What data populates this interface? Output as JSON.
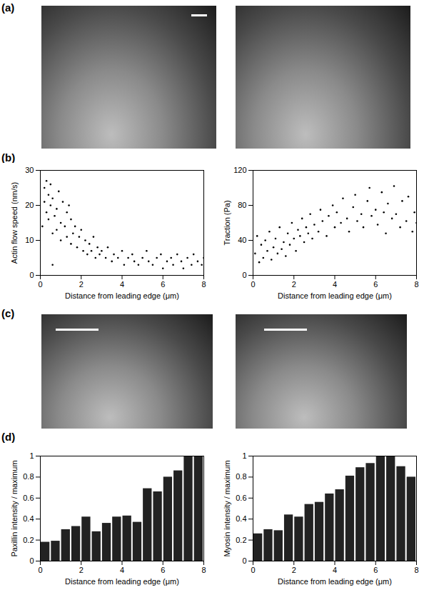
{
  "panel_labels": [
    "(a)",
    "(b)",
    "(c)",
    "(d)"
  ],
  "chart_data": [
    {
      "type": "scatter",
      "x_label": "Distance from leading edge (μm)",
      "y_label": "Actin flow speed (nm/s)",
      "x": [
        0.1,
        0.2,
        0.2,
        0.3,
        0.3,
        0.4,
        0.4,
        0.5,
        0.5,
        0.6,
        0.6,
        0.6,
        0.7,
        0.8,
        0.8,
        0.9,
        1.0,
        1.0,
        1.1,
        1.2,
        1.3,
        1.3,
        1.4,
        1.5,
        1.5,
        1.6,
        1.7,
        1.8,
        1.9,
        2.0,
        2.1,
        2.2,
        2.3,
        2.4,
        2.5,
        2.6,
        2.7,
        2.8,
        2.9,
        3.0,
        3.2,
        3.3,
        3.5,
        3.6,
        3.8,
        4.0,
        4.1,
        4.3,
        4.5,
        4.6,
        4.8,
        5.0,
        5.2,
        5.3,
        5.5,
        5.7,
        5.9,
        6.0,
        6.2,
        6.4,
        6.5,
        6.7,
        6.9,
        7.0,
        7.2,
        7.4,
        7.5,
        7.7,
        7.9,
        8.0
      ],
      "values": [
        14,
        21,
        25,
        18,
        27,
        23,
        16,
        26,
        20,
        12,
        22,
        3,
        17,
        19,
        13,
        24,
        15,
        10,
        21,
        14,
        18,
        11,
        20,
        9,
        16,
        12,
        14,
        8,
        11,
        13,
        7,
        10,
        6,
        9,
        7,
        11,
        5,
        8,
        6,
        7,
        5,
        8,
        4,
        6,
        5,
        7,
        3,
        5,
        6,
        4,
        3,
        5,
        7,
        4,
        3,
        5,
        6,
        2,
        4,
        5,
        3,
        6,
        4,
        2,
        5,
        3,
        6,
        4,
        3,
        5
      ],
      "color": "#000000",
      "xlim": [
        0,
        8
      ],
      "xticks": [
        0,
        2,
        4,
        6,
        8
      ],
      "ylim": [
        0,
        30
      ],
      "yticks": [
        0,
        10,
        20,
        30
      ]
    },
    {
      "type": "scatter",
      "x_label": "Distance from leading edge (μm)",
      "y_label": "Traction (Pa)",
      "x": [
        0.1,
        0.2,
        0.3,
        0.4,
        0.5,
        0.6,
        0.7,
        0.8,
        0.9,
        1.0,
        1.1,
        1.2,
        1.3,
        1.4,
        1.5,
        1.6,
        1.7,
        1.8,
        1.9,
        2.0,
        2.1,
        2.2,
        2.3,
        2.4,
        2.5,
        2.6,
        2.7,
        2.8,
        2.9,
        3.0,
        3.2,
        3.3,
        3.4,
        3.6,
        3.7,
        3.9,
        4.0,
        4.1,
        4.3,
        4.4,
        4.6,
        4.7,
        4.9,
        5.0,
        5.1,
        5.3,
        5.4,
        5.6,
        5.7,
        5.8,
        6.0,
        6.1,
        6.3,
        6.4,
        6.5,
        6.6,
        6.8,
        6.9,
        7.0,
        7.2,
        7.3,
        7.5,
        7.6,
        7.8,
        7.9,
        8.0
      ],
      "values": [
        25,
        45,
        15,
        35,
        20,
        40,
        28,
        50,
        18,
        32,
        42,
        25,
        55,
        30,
        38,
        22,
        48,
        35,
        60,
        42,
        28,
        52,
        45,
        65,
        38,
        55,
        48,
        70,
        42,
        58,
        50,
        75,
        62,
        45,
        68,
        80,
        55,
        72,
        60,
        88,
        65,
        50,
        78,
        92,
        62,
        70,
        55,
        85,
        100,
        68,
        75,
        58,
        95,
        72,
        48,
        82,
        65,
        102,
        70,
        55,
        85,
        62,
        90,
        50,
        72,
        60
      ],
      "color": "#000000",
      "xlim": [
        0,
        8
      ],
      "xticks": [
        0,
        2,
        4,
        6,
        8
      ],
      "ylim": [
        0,
        120
      ],
      "yticks": [
        0,
        40,
        80,
        120
      ]
    },
    {
      "type": "histogram",
      "x_label": "Distance from leading edge (μm)",
      "y_label": "Paxillin intensity / maximum",
      "bins": [
        0,
        0.5,
        1,
        1.5,
        2,
        2.5,
        3,
        3.5,
        4,
        4.5,
        5,
        5.5,
        6,
        6.5,
        7,
        7.5,
        8
      ],
      "values": [
        0.18,
        0.19,
        0.3,
        0.33,
        0.42,
        0.28,
        0.36,
        0.42,
        0.43,
        0.37,
        0.69,
        0.66,
        0.8,
        0.86,
        1.0,
        1.0
      ],
      "color": "#222222",
      "xlim": [
        0,
        8
      ],
      "xticks": [
        0,
        2,
        4,
        6,
        8
      ],
      "ylim": [
        0,
        1
      ],
      "yticks": [
        0,
        0.2,
        0.4,
        0.6,
        0.8,
        1
      ]
    },
    {
      "type": "histogram",
      "x_label": "Distance from leading edge (μm)",
      "y_label": "Myosin intensity / maximum",
      "bins": [
        0,
        0.5,
        1,
        1.5,
        2,
        2.5,
        3,
        3.5,
        4,
        4.5,
        5,
        5.5,
        6,
        6.5,
        7,
        7.5,
        8
      ],
      "values": [
        0.26,
        0.3,
        0.29,
        0.44,
        0.42,
        0.54,
        0.56,
        0.64,
        0.68,
        0.81,
        0.89,
        0.93,
        1.0,
        1.0,
        0.9,
        0.8
      ],
      "color": "#222222",
      "xlim": [
        0,
        8
      ],
      "xticks": [
        0,
        2,
        4,
        6,
        8
      ],
      "ylim": [
        0,
        1
      ],
      "yticks": [
        0,
        0.2,
        0.4,
        0.6,
        0.8,
        1
      ]
    }
  ]
}
